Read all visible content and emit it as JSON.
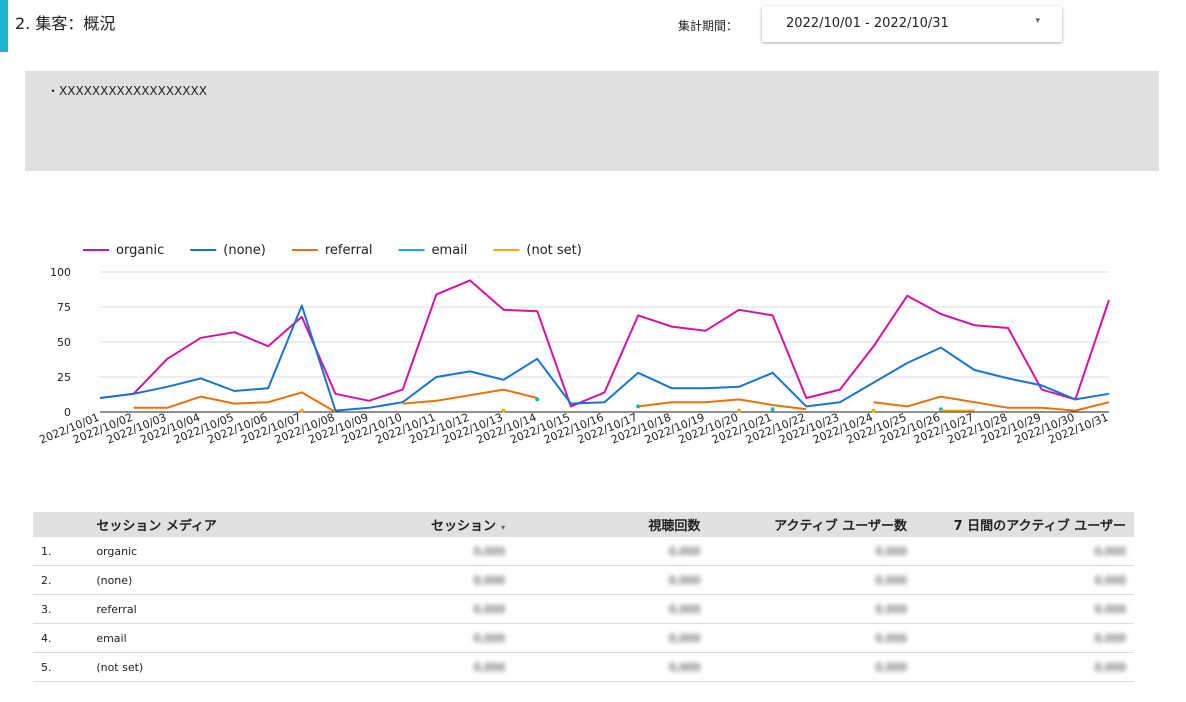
{
  "header": {
    "title": "2. 集客：概況",
    "period_label": "集計期間：",
    "date_range": "2022/10/01 - 2022/10/31",
    "caret": "▾"
  },
  "note": {
    "text": "・XXXXXXXXXXXXXXXXXX"
  },
  "colors": {
    "accent": "#1cb4cf",
    "organic": "#d6139f",
    "none": "#1a73d1",
    "referral": "#e8710a",
    "email": "#12b5cb",
    "notset": "#f9ab00"
  },
  "chart_data": {
    "type": "line",
    "categories": [
      "2022/10/01",
      "2022/10/02",
      "2022/10/03",
      "2022/10/04",
      "2022/10/05",
      "2022/10/06",
      "2022/10/07",
      "2022/10/08",
      "2022/10/09",
      "2022/10/10",
      "2022/10/11",
      "2022/10/12",
      "2022/10/13",
      "2022/10/14",
      "2022/10/15",
      "2022/10/16",
      "2022/10/17",
      "2022/10/18",
      "2022/10/19",
      "2022/10/20",
      "2022/10/21",
      "2022/10/22",
      "2022/10/23",
      "2022/10/24",
      "2022/10/25",
      "2022/10/26",
      "2022/10/27",
      "2022/10/28",
      "2022/10/29",
      "2022/10/30",
      "2022/10/31"
    ],
    "ylim": [
      0,
      100
    ],
    "yticks": [
      0,
      25,
      50,
      75,
      100
    ],
    "grid": true,
    "legend": "top-left",
    "series": [
      {
        "name": "organic",
        "color": "#d6139f",
        "values": [
          10,
          13,
          38,
          53,
          57,
          47,
          68,
          13,
          8,
          16,
          84,
          94,
          73,
          72,
          4,
          14,
          69,
          61,
          58,
          73,
          69,
          10,
          16,
          47,
          83,
          70,
          62,
          60,
          16,
          9,
          80
        ]
      },
      {
        "name": "(none)",
        "color": "#1a73d1",
        "values": [
          10,
          13,
          18,
          24,
          15,
          17,
          76,
          1,
          3,
          7,
          25,
          29,
          23,
          38,
          6,
          7,
          28,
          17,
          17,
          18,
          28,
          4,
          7,
          21,
          35,
          46,
          30,
          24,
          19,
          9,
          13
        ]
      },
      {
        "name": "referral",
        "color": "#e8710a",
        "values": [
          null,
          3,
          3,
          11,
          6,
          7,
          14,
          0,
          null,
          6,
          8,
          12,
          16,
          10,
          null,
          null,
          4,
          7,
          7,
          9,
          5,
          2,
          null,
          7,
          4,
          11,
          7,
          3,
          3,
          1,
          7
        ]
      },
      {
        "name": "email",
        "color": "#12b5cb",
        "values": [
          null,
          null,
          null,
          null,
          null,
          null,
          null,
          null,
          null,
          null,
          null,
          null,
          null,
          9,
          null,
          null,
          4,
          null,
          null,
          null,
          2,
          null,
          null,
          null,
          null,
          2,
          null,
          null,
          null,
          null,
          null
        ]
      },
      {
        "name": "(not set)",
        "color": "#f9ab00",
        "values": [
          null,
          null,
          null,
          null,
          null,
          null,
          1,
          null,
          null,
          null,
          null,
          null,
          1,
          null,
          null,
          null,
          null,
          null,
          null,
          1,
          null,
          null,
          null,
          1,
          null,
          1,
          1,
          null,
          null,
          null,
          null
        ]
      }
    ]
  },
  "table": {
    "headers": {
      "medium": "セッション メディア",
      "sessions": "セッション",
      "sort_icon": "▾",
      "views": "視聴回数",
      "active_users": "アクティブ ユーザー数",
      "weekly_active": "7 日間のアクティブ ユーザー"
    },
    "rows": [
      {
        "index": "1.",
        "medium": "organic",
        "sessions": "0,000",
        "views": "0,000",
        "active_users": "0,000",
        "weekly_active": "0,000"
      },
      {
        "index": "2.",
        "medium": "(none)",
        "sessions": "0,000",
        "views": "0,000",
        "active_users": "0,000",
        "weekly_active": "0,000"
      },
      {
        "index": "3.",
        "medium": "referral",
        "sessions": "0,000",
        "views": "0,000",
        "active_users": "0,000",
        "weekly_active": "0,000"
      },
      {
        "index": "4.",
        "medium": "email",
        "sessions": "0,000",
        "views": "0,000",
        "active_users": "0,000",
        "weekly_active": "0,000"
      },
      {
        "index": "5.",
        "medium": "(not set)",
        "sessions": "0,000",
        "views": "0,000",
        "active_users": "0,000",
        "weekly_active": "0,000"
      }
    ]
  }
}
